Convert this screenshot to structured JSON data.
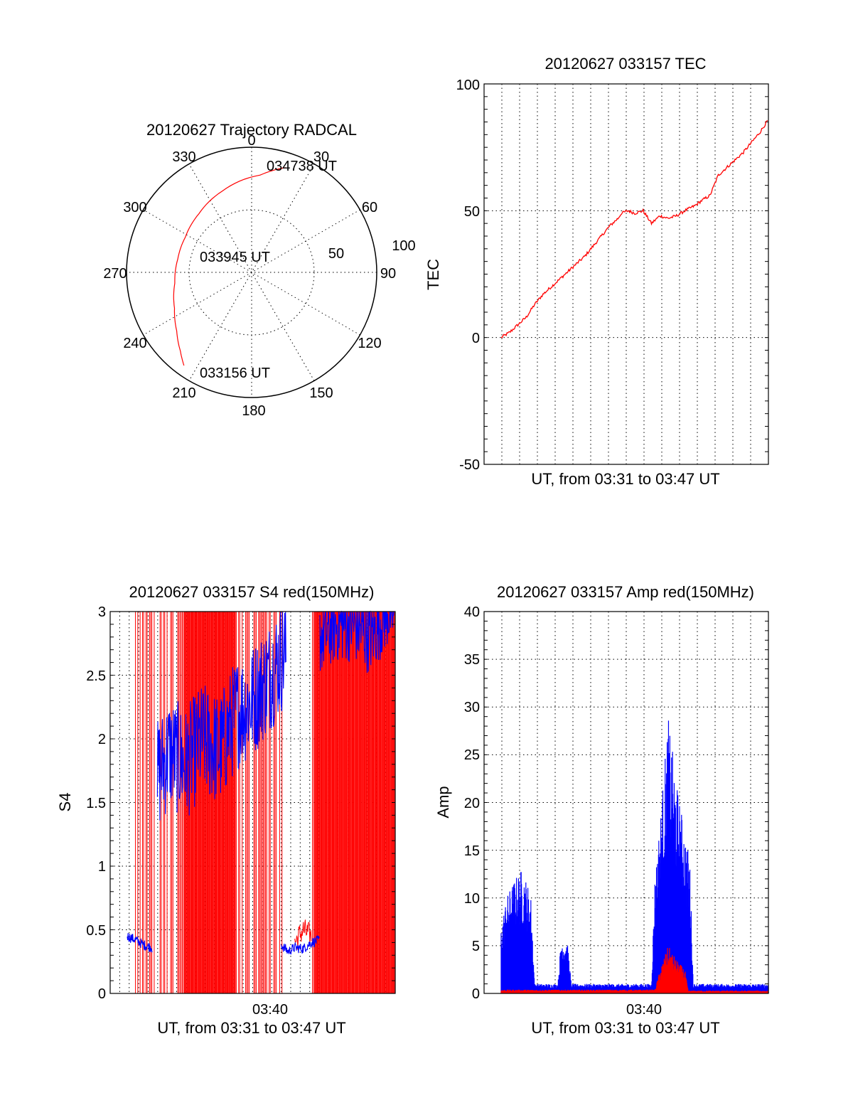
{
  "colors": {
    "red": "#ff0000",
    "blue": "#0000ff",
    "axis": "#000000"
  },
  "chart_data": [
    {
      "id": "polar",
      "type": "scatter",
      "title": "20120627 Trajectory RADCAL",
      "azimuth_labels": [
        "0",
        "30",
        "60",
        "90",
        "120",
        "150",
        "180",
        "210",
        "240",
        "270",
        "300",
        "330"
      ],
      "radial_labels": [
        "50",
        "100"
      ],
      "elevation_max": 100,
      "trajectory": {
        "azimuth_deg": [
          18,
          5,
          340,
          318,
          298,
          280,
          262,
          245,
          232,
          222,
          216
        ],
        "radius": [
          88,
          78,
          69,
          63,
          60,
          60,
          62,
          68,
          76,
          85,
          92
        ]
      },
      "annotations": [
        "034738 UT",
        "033945 UT",
        "033156 UT"
      ]
    },
    {
      "id": "tec",
      "type": "line",
      "title": "20120627 033157 TEC",
      "ylabel": "TEC",
      "xlabel": "UT, from 03:31 to 03:47 UT",
      "ylim": [
        -50,
        100
      ],
      "yticks": [
        "-50",
        "0",
        "50",
        "100"
      ],
      "series": [
        {
          "color": "red",
          "x": [
            0,
            0.5,
            1,
            1.5,
            2,
            2.5,
            3,
            3.5,
            4,
            4.5,
            5,
            5.5,
            6,
            6.5,
            7,
            7.2,
            7.6,
            8,
            8.5,
            9,
            9.5,
            10,
            10.5,
            11,
            11.3,
            11.6,
            12,
            12.5,
            13,
            13.5,
            14,
            14.5,
            15,
            15.5,
            16
          ],
          "y": [
            0,
            2,
            5,
            8,
            13,
            17,
            20,
            23,
            26,
            29,
            32,
            36,
            40,
            44,
            47,
            49,
            50,
            49,
            50,
            45,
            48,
            47,
            48,
            50,
            51,
            52,
            54,
            56,
            64,
            67,
            70,
            73,
            77,
            81,
            86
          ]
        }
      ]
    },
    {
      "id": "s4",
      "type": "line",
      "title": "20120627 033157 S4 red(150MHz)",
      "ylabel": "S4",
      "xlabel": "UT, from 03:31 to 03:47 UT",
      "xtick_label": "03:40",
      "ylim": [
        0,
        3
      ],
      "yticks": [
        "0",
        "0.5",
        "1",
        "1.5",
        "2",
        "2.5",
        "3"
      ],
      "series": [
        {
          "color": "blue",
          "segments": [
            {
              "x": [
                0,
                0.5,
                1,
                1.5
              ],
              "y": [
                0.45,
                0.42,
                0.38,
                0.36
              ]
            },
            {
              "x": [
                1.8,
                2.5,
                3.5,
                4.5,
                5.5,
                6.5,
                7.5,
                8.5,
                9.5
              ],
              "y": [
                1.7,
                1.9,
                1.8,
                2.0,
                1.9,
                2.2,
                2.3,
                2.5,
                2.7
              ]
            },
            {
              "x": [
                9.2,
                9.6,
                10,
                10.5,
                11,
                11.5
              ],
              "y": [
                0.38,
                0.33,
                0.36,
                0.35,
                0.4,
                0.42
              ]
            },
            {
              "x": [
                11.5,
                12.5,
                13.5,
                14.5,
                15.5,
                16
              ],
              "y": [
                2.8,
                2.9,
                2.9,
                2.8,
                3.0,
                3.0
              ]
            }
          ]
        },
        {
          "color": "red",
          "note": "dense spikes 0 to 3",
          "segments": [
            {
              "x": [
                10,
                10.5,
                11
              ],
              "y": [
                0.4,
                0.5,
                0.45
              ]
            }
          ]
        }
      ]
    },
    {
      "id": "amp",
      "type": "line",
      "title": "20120627 033157 Amp red(150MHz)",
      "ylabel": "Amp",
      "xlabel": "UT, from 03:31 to 03:47 UT",
      "xtick_label": "03:40",
      "ylim": [
        0,
        40
      ],
      "yticks": [
        "0",
        "5",
        "10",
        "15",
        "20",
        "25",
        "30",
        "35",
        "40"
      ],
      "series": [
        {
          "color": "blue",
          "envelope_x": [
            0,
            0.3,
            0.8,
            1.2,
            1.5,
            1.8,
            2.0,
            3.4,
            3.6,
            4.0,
            4.2,
            9.0,
            9.2,
            9.6,
            10.0,
            10.5,
            11.0,
            11.3,
            11.5,
            16
          ],
          "envelope_y": [
            7,
            10,
            12,
            13,
            12,
            10,
            1,
            1,
            6,
            5,
            1,
            1,
            12,
            20,
            29,
            22,
            17,
            14,
            1,
            1
          ]
        },
        {
          "color": "red",
          "envelope_x": [
            0,
            2.0,
            9.2,
            9.6,
            10.0,
            10.5,
            11.0,
            11.2,
            16
          ],
          "envelope_y": [
            0.4,
            0.4,
            0.4,
            3,
            5,
            3.5,
            2.5,
            0.3,
            0.3
          ]
        }
      ]
    }
  ]
}
